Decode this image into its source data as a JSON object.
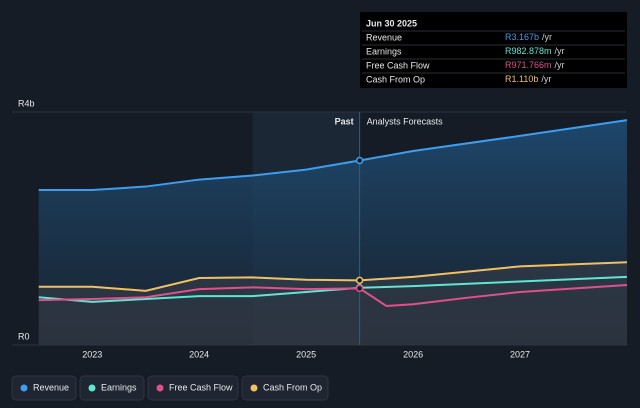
{
  "chart_data": {
    "type": "line",
    "xlim": [
      2022.25,
      2028.0
    ],
    "xticks": [
      2023,
      2024,
      2025,
      2026,
      2027
    ],
    "ylim": [
      0,
      4
    ],
    "yticks": [
      {
        "value": 0,
        "label": "R0"
      },
      {
        "value": 4,
        "label": "R4b"
      }
    ],
    "grid": true,
    "divider_x": 2025.5,
    "divider_labels": [
      "Past",
      "Analysts Forecasts"
    ],
    "series": [
      {
        "name": "Revenue",
        "color": "#3d9ef0",
        "x": [
          2022.5,
          2023.0,
          2023.5,
          2024.0,
          2024.5,
          2025.0,
          2025.5,
          2026.0,
          2027.0,
          2028.0
        ],
        "values": [
          2.66,
          2.66,
          2.72,
          2.84,
          2.91,
          3.01,
          3.167,
          3.33,
          3.59,
          3.86
        ]
      },
      {
        "name": "Earnings",
        "color": "#5fe6d2",
        "x": [
          2022.5,
          2023.0,
          2023.5,
          2024.0,
          2024.5,
          2025.0,
          2025.5,
          2026.0,
          2027.0,
          2028.0
        ],
        "values": [
          0.82,
          0.74,
          0.79,
          0.84,
          0.84,
          0.91,
          0.983,
          1.01,
          1.09,
          1.17
        ]
      },
      {
        "name": "Free Cash Flow",
        "color": "#e0508a",
        "x": [
          2022.5,
          2023.0,
          2023.5,
          2024.0,
          2024.5,
          2025.0,
          2025.5,
          2025.75,
          2026.0,
          2026.5,
          2027.0,
          2028.0
        ],
        "values": [
          0.77,
          0.79,
          0.82,
          0.96,
          0.99,
          0.96,
          0.972,
          0.67,
          0.7,
          0.81,
          0.91,
          1.03
        ]
      },
      {
        "name": "Cash From Op",
        "color": "#f2c061",
        "x": [
          2022.5,
          2023.0,
          2023.5,
          2024.0,
          2024.5,
          2025.0,
          2025.5,
          2026.0,
          2027.0,
          2028.0
        ],
        "values": [
          1.0,
          1.0,
          0.93,
          1.15,
          1.16,
          1.12,
          1.11,
          1.17,
          1.35,
          1.42
        ]
      }
    ],
    "tooltip": {
      "date": "Jun 30 2025",
      "rows": [
        {
          "name": "Revenue",
          "value": "R3.167b",
          "unit": "/yr"
        },
        {
          "name": "Earnings",
          "value": "R982.878m",
          "unit": "/yr"
        },
        {
          "name": "Free Cash Flow",
          "value": "R971.766m",
          "unit": "/yr"
        },
        {
          "name": "Cash From Op",
          "value": "R1.110b",
          "unit": "/yr"
        }
      ]
    }
  }
}
